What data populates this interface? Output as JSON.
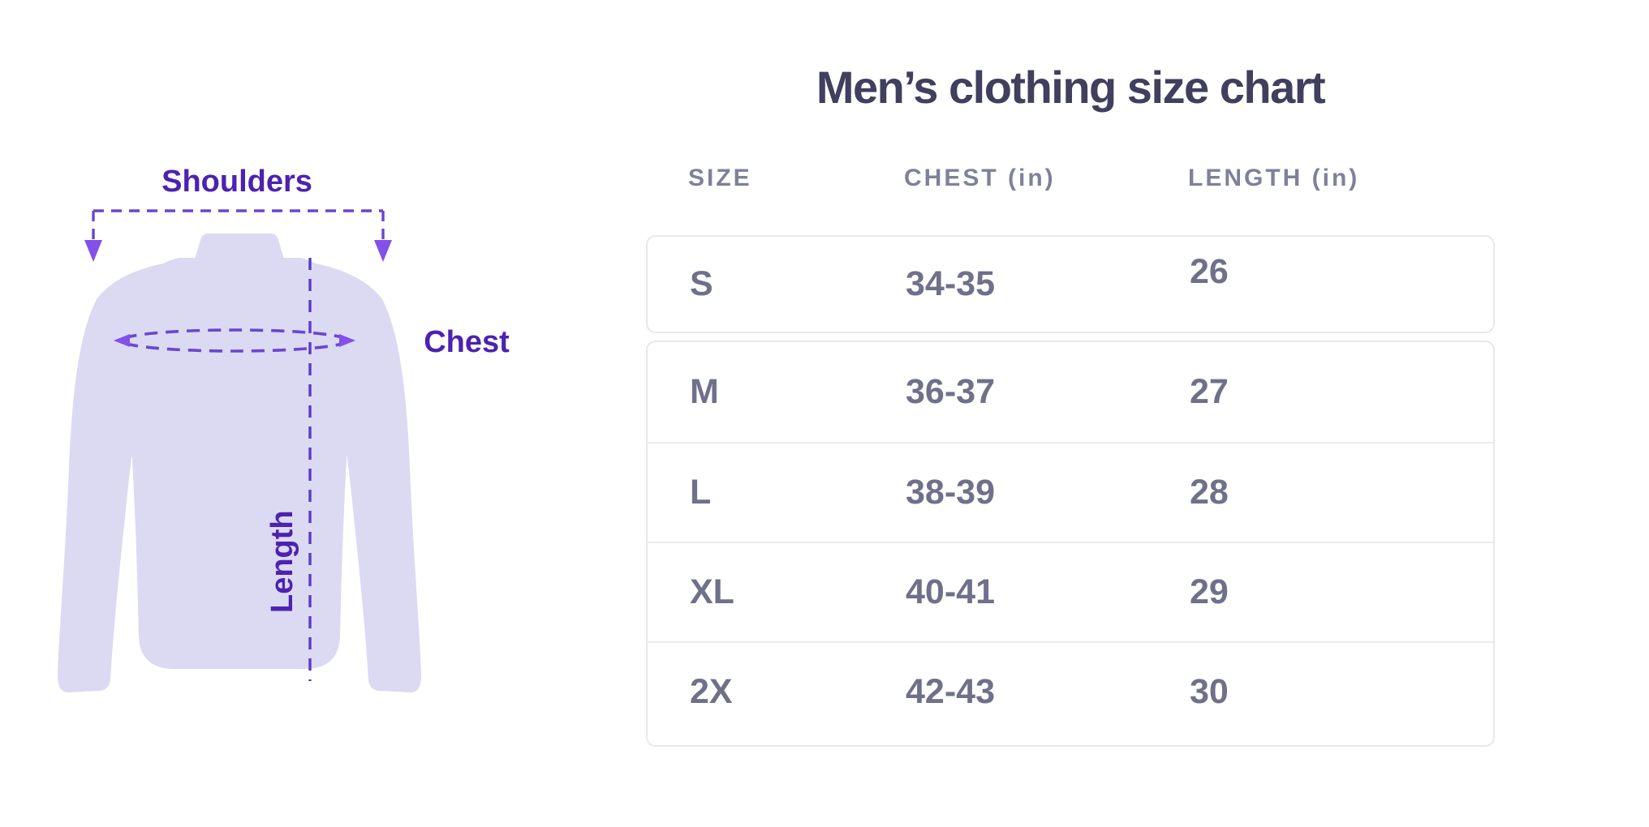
{
  "diagram": {
    "shoulders_label": "Shoulders",
    "chest_label": "Chest",
    "length_label": "Length",
    "colors": {
      "shirt": "#dcd9f3",
      "label": "#4c22b0",
      "dash": "#6847cf",
      "line": "#5d3ac5",
      "arrow": "#8350e8"
    }
  },
  "table": {
    "title": "Men’s clothing size chart",
    "columns": [
      "SIZE",
      "CHEST (in)",
      "LENGTH (in)"
    ],
    "rows": [
      {
        "size": "S",
        "chest": "34-35",
        "length": "26"
      },
      {
        "size": "M",
        "chest": "36-37",
        "length": "27"
      },
      {
        "size": "L",
        "chest": "38-39",
        "length": "28"
      },
      {
        "size": "XL",
        "chest": "40-41",
        "length": "29"
      },
      {
        "size": "2X",
        "chest": "42-43",
        "length": "30"
      }
    ],
    "colors": {
      "title": "#403f5e",
      "header": "#7f819a",
      "cell": "#6f7089",
      "border": "#e8e8eb",
      "separator": "#ebebee"
    }
  }
}
